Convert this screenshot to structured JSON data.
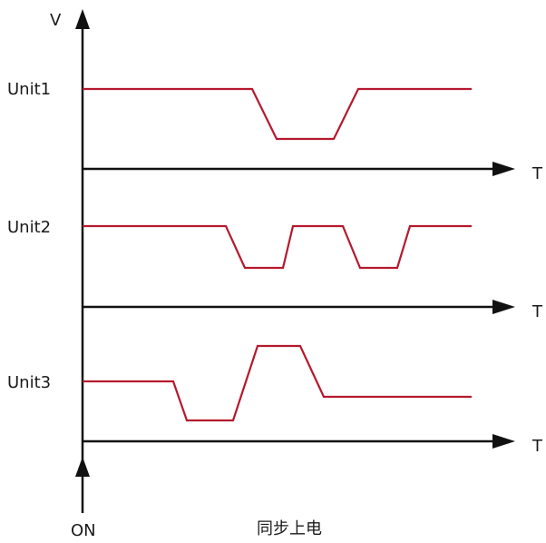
{
  "v_label": "V",
  "t_label": "T",
  "on_label": "ON",
  "caption": "同步上电",
  "colors": {
    "signal": "#b5192e",
    "axis": "#111111"
  },
  "units": [
    {
      "name": "Unit1"
    },
    {
      "name": "Unit2"
    },
    {
      "name": "Unit3"
    }
  ]
}
